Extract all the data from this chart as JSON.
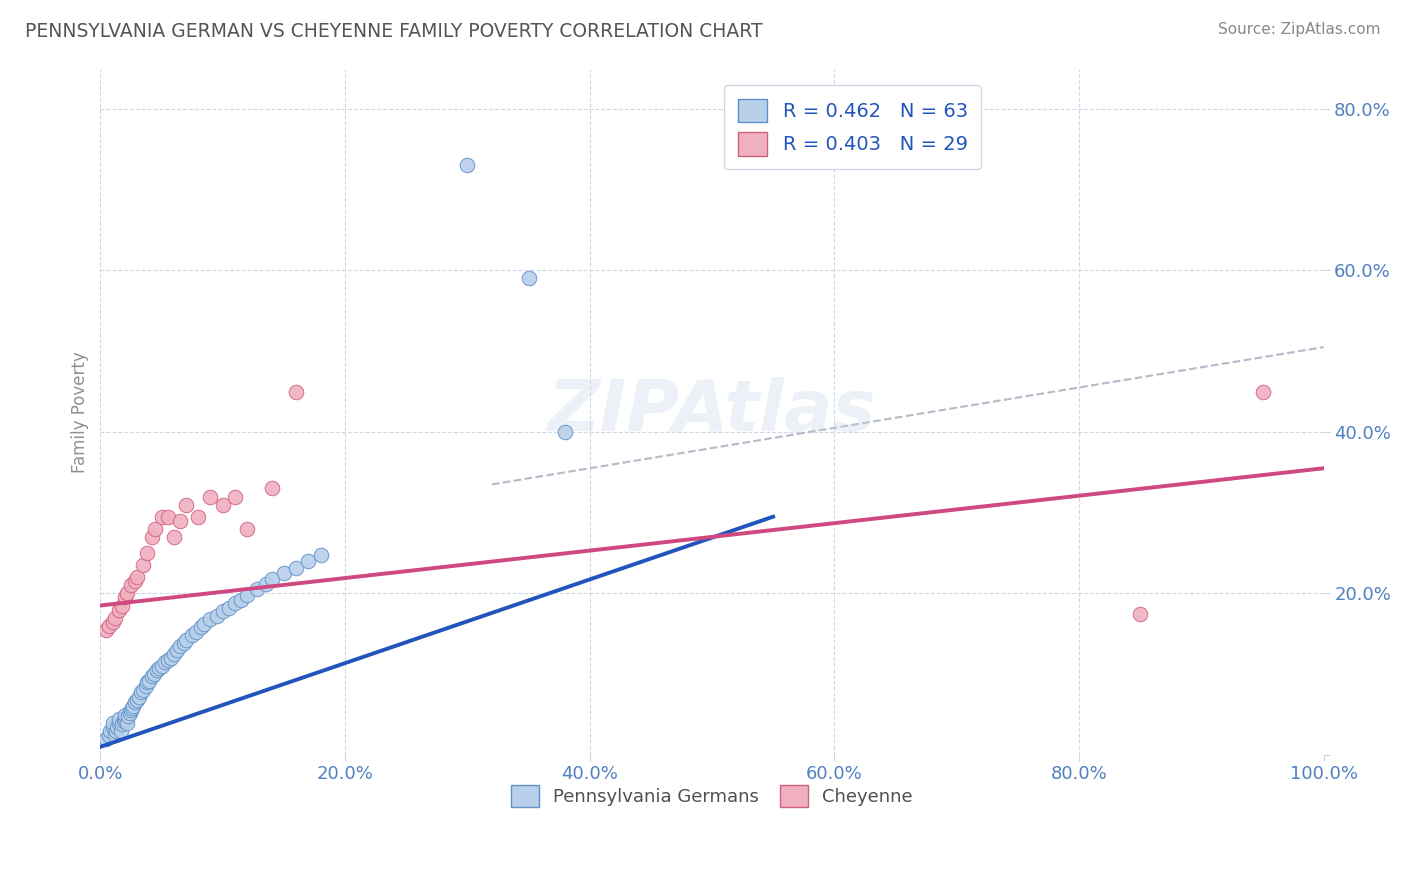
{
  "title": "PENNSYLVANIA GERMAN VS CHEYENNE FAMILY POVERTY CORRELATION CHART",
  "source": "Source: ZipAtlas.com",
  "ylabel": "Family Poverty",
  "r_blue": 0.462,
  "n_blue": 63,
  "r_pink": 0.403,
  "n_pink": 29,
  "blue_scatter_color": "#b8d0ea",
  "blue_edge_color": "#6090c8",
  "pink_scatter_color": "#f0b0c0",
  "pink_edge_color": "#d06080",
  "blue_line_color": "#2255bb",
  "pink_line_color": "#d04880",
  "gray_dash_color": "#b8b8c8",
  "title_color": "#555555",
  "source_color": "#888888",
  "axis_tick_color": "#5080c0",
  "ylabel_color": "#909090",
  "legend_text_color": "#2255bb",
  "xlim": [
    0.0,
    1.0
  ],
  "ylim": [
    0.0,
    0.85
  ],
  "xticks": [
    0.0,
    0.2,
    0.4,
    0.6,
    0.8,
    1.0
  ],
  "yticks": [
    0.0,
    0.2,
    0.4,
    0.6,
    0.8
  ],
  "xtick_labels": [
    "0.0%",
    "20.0%",
    "40.0%",
    "60.0%",
    "80.0%",
    "100.0%"
  ],
  "ytick_labels": [
    "",
    "20.0%",
    "40.0%",
    "60.0%",
    "80.0%"
  ],
  "blue_x": [
    0.005,
    0.007,
    0.008,
    0.01,
    0.01,
    0.012,
    0.013,
    0.014,
    0.015,
    0.015,
    0.017,
    0.018,
    0.019,
    0.02,
    0.02,
    0.022,
    0.023,
    0.024,
    0.025,
    0.026,
    0.027,
    0.028,
    0.03,
    0.032,
    0.033,
    0.035,
    0.037,
    0.038,
    0.04,
    0.042,
    0.044,
    0.046,
    0.048,
    0.05,
    0.053,
    0.055,
    0.058,
    0.06,
    0.063,
    0.065,
    0.068,
    0.07,
    0.075,
    0.078,
    0.082,
    0.085,
    0.09,
    0.095,
    0.1,
    0.105,
    0.11,
    0.115,
    0.12,
    0.128,
    0.135,
    0.14,
    0.15,
    0.16,
    0.17,
    0.18,
    0.3,
    0.35,
    0.38
  ],
  "blue_y": [
    0.02,
    0.025,
    0.03,
    0.035,
    0.04,
    0.025,
    0.03,
    0.035,
    0.04,
    0.045,
    0.03,
    0.038,
    0.042,
    0.045,
    0.05,
    0.04,
    0.048,
    0.052,
    0.055,
    0.058,
    0.06,
    0.065,
    0.068,
    0.072,
    0.078,
    0.08,
    0.085,
    0.09,
    0.092,
    0.098,
    0.1,
    0.105,
    0.108,
    0.11,
    0.115,
    0.118,
    0.12,
    0.125,
    0.13,
    0.135,
    0.138,
    0.142,
    0.148,
    0.152,
    0.158,
    0.162,
    0.168,
    0.172,
    0.178,
    0.182,
    0.188,
    0.192,
    0.198,
    0.205,
    0.212,
    0.218,
    0.225,
    0.232,
    0.24,
    0.248,
    0.73,
    0.59,
    0.4
  ],
  "pink_x": [
    0.005,
    0.007,
    0.01,
    0.012,
    0.015,
    0.018,
    0.02,
    0.022,
    0.025,
    0.028,
    0.03,
    0.035,
    0.038,
    0.042,
    0.045,
    0.05,
    0.055,
    0.06,
    0.065,
    0.07,
    0.08,
    0.09,
    0.1,
    0.11,
    0.12,
    0.14,
    0.16,
    0.85,
    0.95
  ],
  "pink_y": [
    0.155,
    0.16,
    0.165,
    0.17,
    0.18,
    0.185,
    0.195,
    0.2,
    0.21,
    0.215,
    0.22,
    0.235,
    0.25,
    0.27,
    0.28,
    0.295,
    0.295,
    0.27,
    0.29,
    0.31,
    0.295,
    0.32,
    0.31,
    0.32,
    0.28,
    0.33,
    0.45,
    0.175,
    0.45
  ],
  "blue_trendline": {
    "x_start": 0.0,
    "x_end": 0.55,
    "y_start": 0.01,
    "y_end": 0.295
  },
  "pink_trendline": {
    "x_start": 0.0,
    "x_end": 1.0,
    "y_start": 0.185,
    "y_end": 0.355
  },
  "gray_trendline": {
    "x_start": 0.32,
    "x_end": 1.0,
    "y_start": 0.335,
    "y_end": 0.505
  }
}
